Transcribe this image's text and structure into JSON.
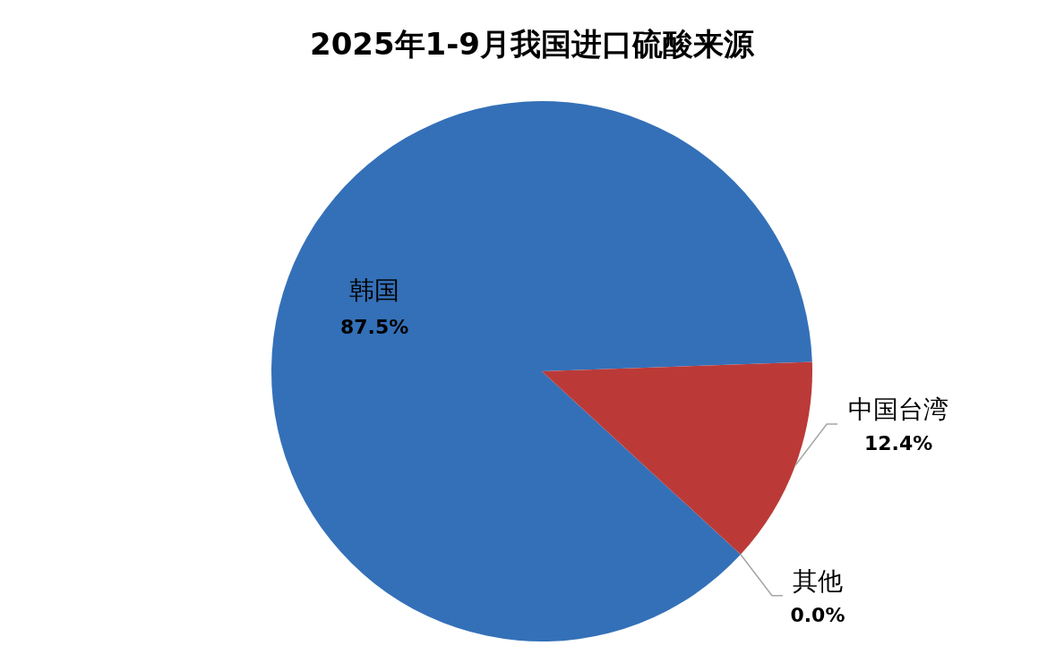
{
  "chart_data": {
    "type": "pie",
    "title": "2025年1-9月我国进口硫酸来源",
    "categories": [
      "韩国",
      "中国台湾",
      "其他"
    ],
    "values": [
      87.5,
      12.4,
      0.0
    ],
    "colors": [
      "#3470b8",
      "#bb3a38",
      "#9bbb59"
    ],
    "value_labels": [
      "87.5%",
      "12.4%",
      "0.0%"
    ]
  }
}
